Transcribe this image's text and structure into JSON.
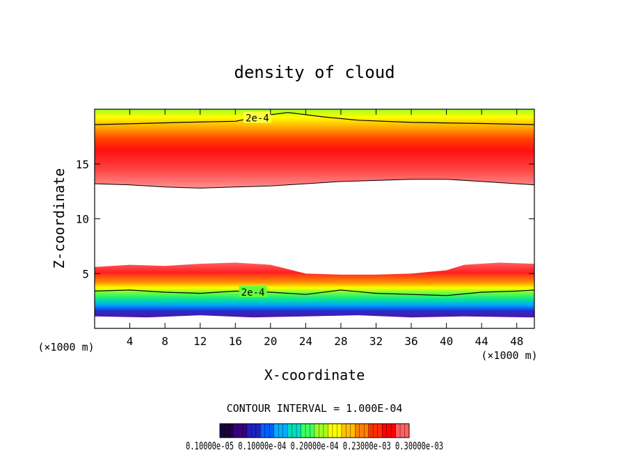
{
  "chart_data": {
    "type": "heatmap",
    "title": "density of cloud",
    "xlabel": "X-coordinate",
    "ylabel": "Z-coordinate",
    "x_unit_left": "(×1000 m)",
    "x_unit_right": "(×1000 m)",
    "xlim": [
      0,
      50
    ],
    "ylim": [
      0,
      20
    ],
    "x_ticks": [
      4,
      8,
      12,
      16,
      20,
      24,
      28,
      32,
      36,
      40,
      44,
      48
    ],
    "y_ticks": [
      5,
      10,
      15
    ],
    "contour_interval_text": "CONTOUR INTERVAL = 1.000E-04",
    "contour_labels": [
      {
        "text": "2e-4",
        "x": 18.5,
        "y": 19.2
      },
      {
        "text": "2e-4",
        "x": 18.0,
        "y": 3.3
      }
    ],
    "colorbar": {
      "colors": [
        "#1a0040",
        "#3a0080",
        "#2020c0",
        "#0060ff",
        "#00b0ff",
        "#00e0c0",
        "#40ff60",
        "#a0ff20",
        "#ffff00",
        "#ffc000",
        "#ff8000",
        "#ff3000",
        "#ff0000",
        "#ff6060"
      ],
      "labels_text": "0.10000e-05 0.10000e-04 0.20000e-04 0.23000e-03 0.30000e-03"
    },
    "upper_layer": {
      "top_edge": [
        [
          0,
          18.6
        ],
        [
          10,
          18.8
        ],
        [
          16,
          18.9
        ],
        [
          20,
          19.5
        ],
        [
          22,
          19.7
        ],
        [
          26,
          19.3
        ],
        [
          30,
          19.0
        ],
        [
          36,
          18.8
        ],
        [
          44,
          18.7
        ],
        [
          50,
          18.6
        ]
      ],
      "bottom_edge": [
        [
          0,
          13.2
        ],
        [
          4,
          13.1
        ],
        [
          8,
          12.9
        ],
        [
          12,
          12.8
        ],
        [
          16,
          12.9
        ],
        [
          20,
          13.0
        ],
        [
          24,
          13.2
        ],
        [
          28,
          13.4
        ],
        [
          32,
          13.5
        ],
        [
          36,
          13.6
        ],
        [
          40,
          13.6
        ],
        [
          44,
          13.4
        ],
        [
          48,
          13.2
        ],
        [
          50,
          13.1
        ]
      ],
      "core_height": 15.2
    },
    "lower_layer": {
      "top_edge": [
        [
          0,
          5.6
        ],
        [
          4,
          5.8
        ],
        [
          8,
          5.7
        ],
        [
          12,
          5.9
        ],
        [
          16,
          6.0
        ],
        [
          20,
          5.8
        ],
        [
          24,
          5.0
        ],
        [
          28,
          4.9
        ],
        [
          32,
          4.9
        ],
        [
          36,
          5.0
        ],
        [
          40,
          5.3
        ],
        [
          42,
          5.8
        ],
        [
          46,
          6.0
        ],
        [
          50,
          5.9
        ]
      ],
      "contour_2e4": [
        [
          0,
          3.4
        ],
        [
          4,
          3.5
        ],
        [
          8,
          3.3
        ],
        [
          12,
          3.2
        ],
        [
          16,
          3.4
        ],
        [
          20,
          3.3
        ],
        [
          24,
          3.1
        ],
        [
          28,
          3.5
        ],
        [
          32,
          3.2
        ],
        [
          36,
          3.1
        ],
        [
          40,
          3.0
        ],
        [
          44,
          3.3
        ],
        [
          48,
          3.4
        ],
        [
          50,
          3.5
        ]
      ],
      "bottom_edge": [
        [
          0,
          1.1
        ],
        [
          6,
          1.0
        ],
        [
          12,
          1.2
        ],
        [
          18,
          1.0
        ],
        [
          24,
          1.1
        ],
        [
          30,
          1.2
        ],
        [
          36,
          1.0
        ],
        [
          42,
          1.1
        ],
        [
          50,
          1.0
        ]
      ]
    }
  }
}
